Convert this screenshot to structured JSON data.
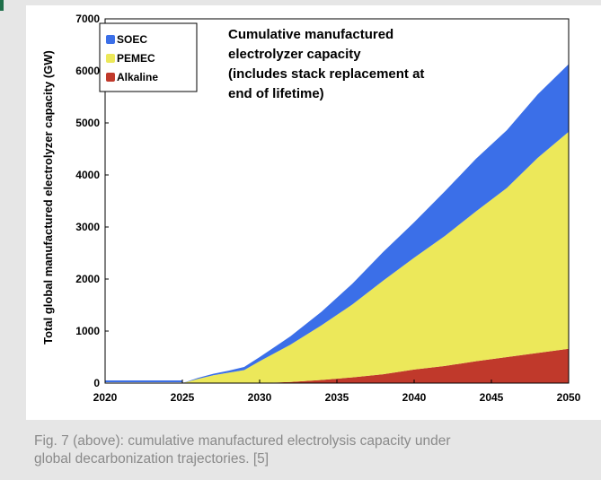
{
  "chart_data": {
    "type": "area",
    "stacked": true,
    "ylabel": "Total global manufactured electrolyzer capacity (GW)",
    "xlabel": "",
    "xlim": [
      2020,
      2050
    ],
    "ylim": [
      0,
      7000
    ],
    "x_ticks": [
      "2020",
      "2025",
      "2030",
      "2035",
      "2040",
      "2045",
      "2050"
    ],
    "y_ticks": [
      "0",
      "1000",
      "2000",
      "3000",
      "4000",
      "5000",
      "6000",
      "7000"
    ],
    "annotation": [
      "Cumulative manufactured",
      "electrolyzer capacity",
      "(includes stack replacement at",
      "end of lifetime)"
    ],
    "legend_position": "top-left",
    "x": [
      2020,
      2025,
      2026,
      2027,
      2028,
      2029,
      2030,
      2032,
      2034,
      2036,
      2038,
      2040,
      2042,
      2044,
      2046,
      2048,
      2050
    ],
    "series": [
      {
        "name": "Alkaline",
        "color": "#c0392b",
        "values": [
          0,
          0,
          0,
          0,
          0,
          0,
          0,
          20,
          60,
          110,
          170,
          260,
          330,
          420,
          500,
          580,
          660
        ]
      },
      {
        "name": "PEMEC",
        "color": "#ece85a",
        "values": [
          0,
          0,
          80,
          150,
          200,
          250,
          420,
          720,
          1050,
          1400,
          1800,
          2150,
          2500,
          2880,
          3250,
          3750,
          4170
        ]
      },
      {
        "name": "SOEC",
        "color": "#3b6fe8",
        "values": [
          0,
          0,
          20,
          30,
          40,
          60,
          80,
          160,
          260,
          400,
          550,
          680,
          860,
          1010,
          1110,
          1220,
          1300
        ]
      }
    ]
  },
  "caption": {
    "line1": "Fig. 7 (above): cumulative manufactured electrolysis capacity under",
    "line2": "global decarbonization trajectories. [5]"
  }
}
